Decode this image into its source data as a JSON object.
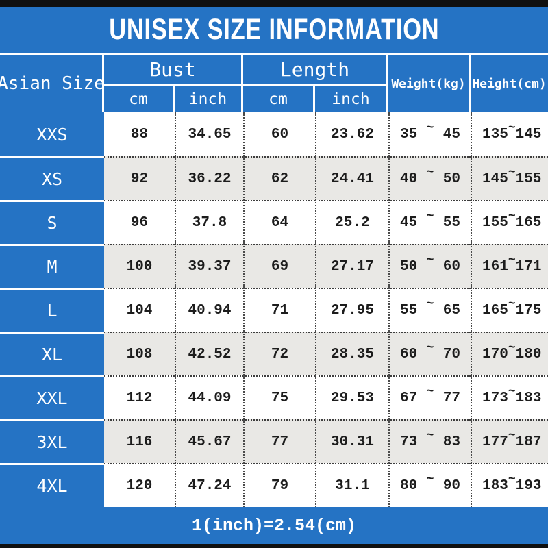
{
  "title": "UNISEX SIZE INFORMATION",
  "footer_note": "1(inch)=2.54(cm)",
  "colors": {
    "blue": "#2573c4",
    "alt_row_gray": "#e9e8e5",
    "edge_bar_black": "#101010",
    "data_text": "#1c1c1c",
    "white": "#ffffff"
  },
  "table": {
    "corner_header": "Asian Size",
    "groups": [
      {
        "label": "Bust",
        "sub": [
          "cm",
          "inch"
        ]
      },
      {
        "label": "Length",
        "sub": [
          "cm",
          "inch"
        ]
      }
    ],
    "weight_header": "Weight(kg)",
    "height_header": "Height(cm)",
    "range_separator": "~",
    "rows": [
      {
        "size": "XXS",
        "bust_cm": "88",
        "bust_inch": "34.65",
        "length_cm": "60",
        "length_inch": "23.62",
        "weight": [
          "35",
          "45"
        ],
        "height": [
          "135",
          "145"
        ]
      },
      {
        "size": "XS",
        "bust_cm": "92",
        "bust_inch": "36.22",
        "length_cm": "62",
        "length_inch": "24.41",
        "weight": [
          "40",
          "50"
        ],
        "height": [
          "145",
          "155"
        ]
      },
      {
        "size": "S",
        "bust_cm": "96",
        "bust_inch": "37.8",
        "length_cm": "64",
        "length_inch": "25.2",
        "weight": [
          "45",
          "55"
        ],
        "height": [
          "155",
          "165"
        ]
      },
      {
        "size": "M",
        "bust_cm": "100",
        "bust_inch": "39.37",
        "length_cm": "69",
        "length_inch": "27.17",
        "weight": [
          "50",
          "60"
        ],
        "height": [
          "161",
          "171"
        ]
      },
      {
        "size": "L",
        "bust_cm": "104",
        "bust_inch": "40.94",
        "length_cm": "71",
        "length_inch": "27.95",
        "weight": [
          "55",
          "65"
        ],
        "height": [
          "165",
          "175"
        ]
      },
      {
        "size": "XL",
        "bust_cm": "108",
        "bust_inch": "42.52",
        "length_cm": "72",
        "length_inch": "28.35",
        "weight": [
          "60",
          "70"
        ],
        "height": [
          "170",
          "180"
        ]
      },
      {
        "size": "XXL",
        "bust_cm": "112",
        "bust_inch": "44.09",
        "length_cm": "75",
        "length_inch": "29.53",
        "weight": [
          "67",
          "77"
        ],
        "height": [
          "173",
          "183"
        ]
      },
      {
        "size": "3XL",
        "bust_cm": "116",
        "bust_inch": "45.67",
        "length_cm": "77",
        "length_inch": "30.31",
        "weight": [
          "73",
          "83"
        ],
        "height": [
          "177",
          "187"
        ]
      },
      {
        "size": "4XL",
        "bust_cm": "120",
        "bust_inch": "47.24",
        "length_cm": "79",
        "length_inch": "31.1",
        "weight": [
          "80",
          "90"
        ],
        "height": [
          "183",
          "193"
        ]
      }
    ]
  }
}
